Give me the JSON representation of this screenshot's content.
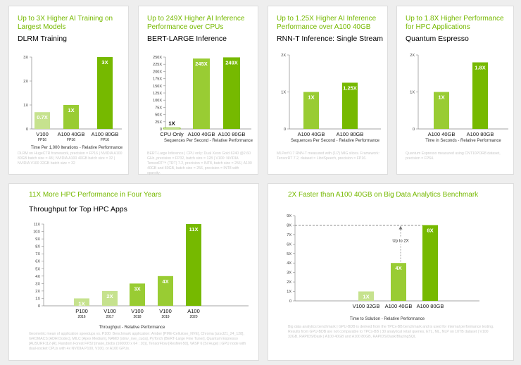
{
  "colors": {
    "accent": "#76b900",
    "bar_light": "#c6e28e",
    "bar_mid": "#99cc33",
    "bar_dark": "#76b900",
    "bar_white": "#ffffff"
  },
  "panels": [
    {
      "title": "Up to 3X Higher AI Training on Largest Models",
      "subtitle": "DLRM Training",
      "note": "DLRM on HugeCTR framework, precision = FP16 | NVIDIA A100 80GB batch size = 48 | NVIDIA A100 40GB batch size = 32 | NVIDIA V100 32GB batch size = 32"
    },
    {
      "title": "Up to 249X Higher AI Inference Performance over CPUs",
      "subtitle": "BERT-LARGE Inference",
      "note": "BERT-Large Inference | CPU only: Dual Xeon Gold 6240 @2.60 GHz, precision = FP32, batch size = 128 | V100: NVIDIA TensorRT™ (TRT) 7.2, precision = INT8, batch size = 256 | A100 40GB and 80GB, batch size = 256, precision = INT8 with sparsity."
    },
    {
      "title": "Up to 1.25X Higher AI Inference Performance over A100 40GB",
      "subtitle": "RNN-T Inference: Single Stream",
      "note": "MLPerf 0.7 RNN-T measured with (1/7) MIG slices. Framework: TensorRT 7.2, dataset = LibriSpeech, precision = FP16."
    },
    {
      "title": "Up to 1.8X Higher Performance for HPC Applications",
      "subtitle": "Quantum Espresso",
      "note": "Quantum Espresso measured using CNT10POR8 dataset, precision = FP64."
    },
    {
      "title": "11X More HPC Performance in Four Years",
      "subtitle": "Throughput for Top HPC Apps",
      "note": "Geometric mean of application speedups vs. P100: Benchmark application: Amber [PME-Cellulose_NVE], Chroma [szscl21_24_128], GROMACS [ADH Dodec], MILC [Apex Medium], NAMD [stmv_nve_cuda], PyTorch (BERT-Large Fine Tuner], Quantum Espresso [AUSURF112-jR], Random Forest FP32 [make_blobs (160000 x 64 : 10)], TensorFlow [ResNet-50], VASP 6 [Si Huge] | GPU node with dual-socket CPUs with 4x NVIDIA P100, V100, or A100 GPUs."
    },
    {
      "title": "2X Faster than A100 40GB on Big Data Analytics Benchmark",
      "subtitle": "",
      "note": "Big data analytics benchmark | GPU-BDB is derived from the TPCx-BB benchmark and is used for internal performance testing. Results from GPU-BDB are not comparable to TPCx-BB | 30 analytical retail queries, ETL, ML, NLP on 10TB dataset | V100 32GB, RAPIDS/Dask | A100 40GB and A100 80GB, RAPIDS/Dask/BlazingSQL"
    }
  ],
  "chart_data": [
    {
      "type": "bar",
      "title": "DLRM Training",
      "categories": [
        "V100",
        "A100 40GB",
        "A100 80GB"
      ],
      "category_sublabels": [
        "FP16",
        "FP16",
        "FP16"
      ],
      "values": [
        0.7,
        1,
        3
      ],
      "data_labels": [
        "0.7X",
        "1X",
        "3X"
      ],
      "yticks": [
        "0",
        "1X",
        "2X",
        "3X"
      ],
      "ylim": [
        0,
        3
      ],
      "xlabel": "Time Per 1,000 Iterations - Relative Performance",
      "ylabel": ""
    },
    {
      "type": "bar",
      "title": "BERT-LARGE Inference",
      "categories": [
        "CPU Only",
        "A100 40GB",
        "A100 80GB"
      ],
      "values": [
        1,
        245,
        249
      ],
      "data_labels": [
        "1X",
        "245X",
        "249X"
      ],
      "yticks": [
        "0",
        "25X",
        "50X",
        "75X",
        "100X",
        "125X",
        "150X",
        "175X",
        "200X",
        "225X",
        "250X"
      ],
      "ylim": [
        0,
        250
      ],
      "xlabel": "Sequences Per Second - Relative Performance",
      "ylabel": ""
    },
    {
      "type": "bar",
      "title": "RNN-T Inference: Single Stream",
      "categories": [
        "A100 40GB",
        "A100 80GB"
      ],
      "values": [
        1,
        1.25
      ],
      "data_labels": [
        "1X",
        "1.25X"
      ],
      "yticks": [
        "0",
        "1X",
        "2X"
      ],
      "ylim": [
        0,
        2
      ],
      "xlabel": "Sequences Per Second - Relative Performance",
      "ylabel": ""
    },
    {
      "type": "bar",
      "title": "Quantum Espresso",
      "categories": [
        "A100 40GB",
        "A100 80GB"
      ],
      "values": [
        1,
        1.8
      ],
      "data_labels": [
        "1X",
        "1.8X"
      ],
      "yticks": [
        "0",
        "1X",
        "2X"
      ],
      "ylim": [
        0,
        2
      ],
      "xlabel": "Time in Seconds - Relative Performance",
      "ylabel": ""
    },
    {
      "type": "bar",
      "title": "Throughput for Top HPC Apps",
      "categories": [
        "P100",
        "V100",
        "V100",
        "V100",
        "A100"
      ],
      "category_sublabels": [
        "2016",
        "2017",
        "2018",
        "2019",
        "2020"
      ],
      "values": [
        1,
        2,
        3,
        4,
        11
      ],
      "data_labels": [
        "1X",
        "2X",
        "3X",
        "4X",
        "11X"
      ],
      "yticks": [
        "0",
        "1X",
        "2X",
        "3X",
        "4X",
        "5X",
        "6X",
        "7X",
        "8X",
        "9X",
        "10X",
        "11X"
      ],
      "ylim": [
        0,
        11
      ],
      "xlabel": "Throughput - Relative Performance",
      "ylabel": ""
    },
    {
      "type": "bar",
      "title": "2X Faster than A100 40GB on Big Data Analytics Benchmark",
      "categories": [
        "V100 32GB",
        "A100 40GB",
        "A100 80GB"
      ],
      "values": [
        1,
        4,
        8
      ],
      "data_labels": [
        "1X",
        "4X",
        "8X"
      ],
      "yticks": [
        "0",
        "1X",
        "2X",
        "3X",
        "4X",
        "5X",
        "6X",
        "7X",
        "8X",
        "9X"
      ],
      "ylim": [
        0,
        9
      ],
      "xlabel": "Time to Solution - Relative Performance",
      "ylabel": "",
      "annotation": "Up to 2X"
    }
  ]
}
